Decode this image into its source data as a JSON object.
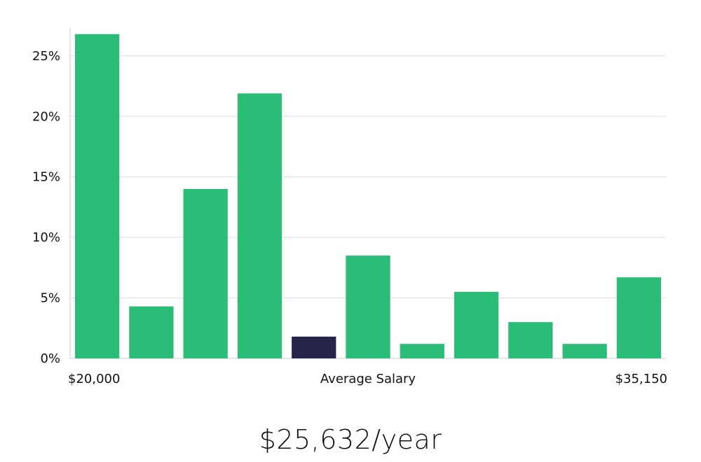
{
  "colors": {
    "bar": "#2bbd77",
    "highlight": "#27244a",
    "grid": "#dcdcdc",
    "axis": "#cccccc",
    "text": "#111111"
  },
  "chart_data": {
    "type": "bar",
    "title": "",
    "xlabel": "Average Salary",
    "x_start_label": "$20,000",
    "x_end_label": "$35,150",
    "ylabel": "",
    "ylim": [
      0,
      0.28
    ],
    "yticks": [
      {
        "value": 0,
        "label": "0%"
      },
      {
        "value": 0.05,
        "label": "5%"
      },
      {
        "value": 0.1,
        "label": "10%"
      },
      {
        "value": 0.15,
        "label": "15%"
      },
      {
        "value": 0.2,
        "label": "20%"
      },
      {
        "value": 0.25,
        "label": "25%"
      }
    ],
    "values": [
      0.268,
      0.043,
      0.14,
      0.219,
      0.018,
      0.085,
      0.012,
      0.055,
      0.03,
      0.012,
      0.067
    ],
    "highlight_index": 4,
    "grid": true
  },
  "summary": {
    "salary": "$25,632/year"
  }
}
